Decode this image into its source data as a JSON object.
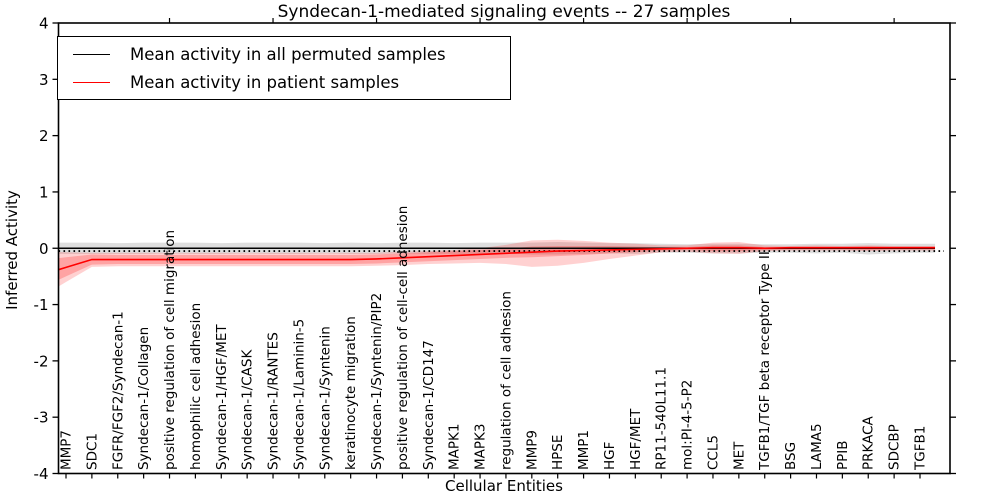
{
  "title": "Syndecan-1-mediated signaling events -- 27 samples",
  "axes": {
    "x_label": "Cellular Entities",
    "y_label": "Inferred Activity",
    "y_ticks": [
      4,
      3,
      2,
      1,
      0,
      -1,
      -2,
      -3,
      -4
    ],
    "y_range": [
      -4,
      4
    ],
    "top_tick_every": 4
  },
  "legend": {
    "entries": [
      {
        "label": "Mean activity in all permuted samples",
        "color": "#000000"
      },
      {
        "label": "Mean activity in patient samples",
        "color": "#ff0000"
      }
    ]
  },
  "colors": {
    "patient_line": "#ff0000",
    "permuted_line": "#000000",
    "patient_band": "#ff0000",
    "permuted_band": "#000000",
    "frame": "#000000",
    "background": "#ffffff"
  },
  "chart_data": {
    "type": "line",
    "title": "Syndecan-1-mediated signaling events -- 27 samples",
    "xlabel": "Cellular Entities",
    "ylabel": "Inferred Activity",
    "ylim": [
      -4,
      4
    ],
    "grid": false,
    "legend_position": "upper left",
    "dotted_reference_line_y": -0.05,
    "categories": [
      "MMP7",
      "SDC1",
      "FGFR/FGF2/Syndecan-1",
      "Syndecan-1/Collagen",
      "positive regulation of cell migration",
      "homophilic cell adhesion",
      "Syndecan-1/HGF/MET",
      "Syndecan-1/CASK",
      "Syndecan-1/RANTES",
      "Syndecan-1/Laminin-5",
      "Syndecan-1/Syntenin",
      "keratinocyte migration",
      "Syndecan-1/Syntenin/PIP2",
      "positive regulation of cell-cell adhesion",
      "Syndecan-1/CD147",
      "MAPK1",
      "MAPK3",
      "regulation of cell adhesion",
      "MMP9",
      "HPSE",
      "MMP1",
      "HGF",
      "HGF/MET",
      "RP11-540L11.1",
      "mol:PI-4-5-P2",
      "CCL5",
      "MET",
      "TGFB1/TGF beta receptor Type II",
      "BSG",
      "LAMA5",
      "PPIB",
      "PRKACA",
      "SDCBP",
      "TGFB1"
    ],
    "series": [
      {
        "name": "Mean activity in all permuted samples",
        "color": "#000000",
        "values": [
          0,
          0,
          0,
          0,
          0,
          0,
          0,
          0,
          0,
          0,
          0,
          0,
          0,
          0,
          0,
          0,
          0,
          0,
          0,
          0,
          0,
          0,
          0,
          0,
          0,
          0,
          0,
          0,
          0,
          0,
          0,
          0,
          0,
          0
        ],
        "band_upper": [
          0.1,
          0.1,
          0.09,
          0.1,
          0.1,
          0.1,
          0.09,
          0.1,
          0.1,
          0.1,
          0.09,
          0.1,
          0.09,
          0.1,
          0.1,
          0.09,
          0.1,
          0.1,
          0.1,
          0.11,
          0.1,
          0.09,
          0.09,
          0.08,
          0.07,
          0.08,
          0.08,
          0.07,
          0.07,
          0.08,
          0.08,
          0.09,
          0.08,
          0.08
        ],
        "band_lower": [
          -0.1,
          -0.1,
          -0.1,
          -0.1,
          -0.09,
          -0.1,
          -0.1,
          -0.09,
          -0.1,
          -0.1,
          -0.09,
          -0.1,
          -0.1,
          -0.09,
          -0.1,
          -0.1,
          -0.1,
          -0.09,
          -0.11,
          -0.11,
          -0.1,
          -0.09,
          -0.1,
          -0.08,
          -0.08,
          -0.09,
          -0.09,
          -0.08,
          -0.08,
          -0.09,
          -0.08,
          -0.11,
          -0.09,
          -0.08
        ]
      },
      {
        "name": "Mean activity in patient samples",
        "color": "#ff0000",
        "values": [
          -0.34,
          -0.2,
          -0.2,
          -0.2,
          -0.2,
          -0.2,
          -0.2,
          -0.2,
          -0.2,
          -0.2,
          -0.2,
          -0.2,
          -0.19,
          -0.17,
          -0.15,
          -0.13,
          -0.11,
          -0.09,
          -0.07,
          -0.05,
          -0.04,
          -0.03,
          -0.02,
          -0.01,
          0.0,
          0.01,
          0.01,
          0.0,
          0.01,
          0.01,
          0.01,
          0.01,
          0.01,
          0.01
        ],
        "band_outer_upper": [
          -0.07,
          -0.08,
          -0.08,
          -0.08,
          -0.08,
          -0.08,
          -0.08,
          -0.08,
          -0.08,
          -0.08,
          -0.08,
          -0.08,
          -0.08,
          -0.06,
          -0.05,
          -0.03,
          0.0,
          0.06,
          0.14,
          0.15,
          0.13,
          0.1,
          0.08,
          0.05,
          0.05,
          0.1,
          0.11,
          0.05,
          0.04,
          0.05,
          0.04,
          0.05,
          0.04,
          0.04
        ],
        "band_outer_lower": [
          -0.6,
          -0.33,
          -0.32,
          -0.32,
          -0.32,
          -0.32,
          -0.32,
          -0.32,
          -0.32,
          -0.32,
          -0.32,
          -0.32,
          -0.31,
          -0.3,
          -0.28,
          -0.27,
          -0.26,
          -0.28,
          -0.33,
          -0.31,
          -0.26,
          -0.19,
          -0.13,
          -0.07,
          -0.06,
          -0.09,
          -0.1,
          -0.05,
          -0.04,
          -0.04,
          -0.04,
          -0.05,
          -0.04,
          -0.04
        ],
        "band_inner_upper": [
          -0.16,
          -0.11,
          -0.12,
          -0.12,
          -0.12,
          -0.12,
          -0.12,
          -0.12,
          -0.12,
          -0.12,
          -0.12,
          -0.12,
          -0.11,
          -0.09,
          -0.07,
          -0.05,
          -0.03,
          -0.01,
          0.03,
          0.04,
          0.04,
          0.04,
          0.03,
          0.02,
          0.02,
          0.05,
          0.05,
          0.02,
          0.02,
          0.02,
          0.02,
          0.03,
          0.02,
          0.02
        ],
        "band_inner_lower": [
          -0.5,
          -0.29,
          -0.28,
          -0.28,
          -0.28,
          -0.28,
          -0.28,
          -0.28,
          -0.28,
          -0.28,
          -0.28,
          -0.28,
          -0.27,
          -0.25,
          -0.23,
          -0.21,
          -0.19,
          -0.17,
          -0.16,
          -0.14,
          -0.12,
          -0.09,
          -0.07,
          -0.04,
          -0.03,
          -0.05,
          -0.05,
          -0.03,
          -0.02,
          -0.02,
          -0.02,
          -0.03,
          -0.02,
          -0.02
        ]
      }
    ]
  }
}
